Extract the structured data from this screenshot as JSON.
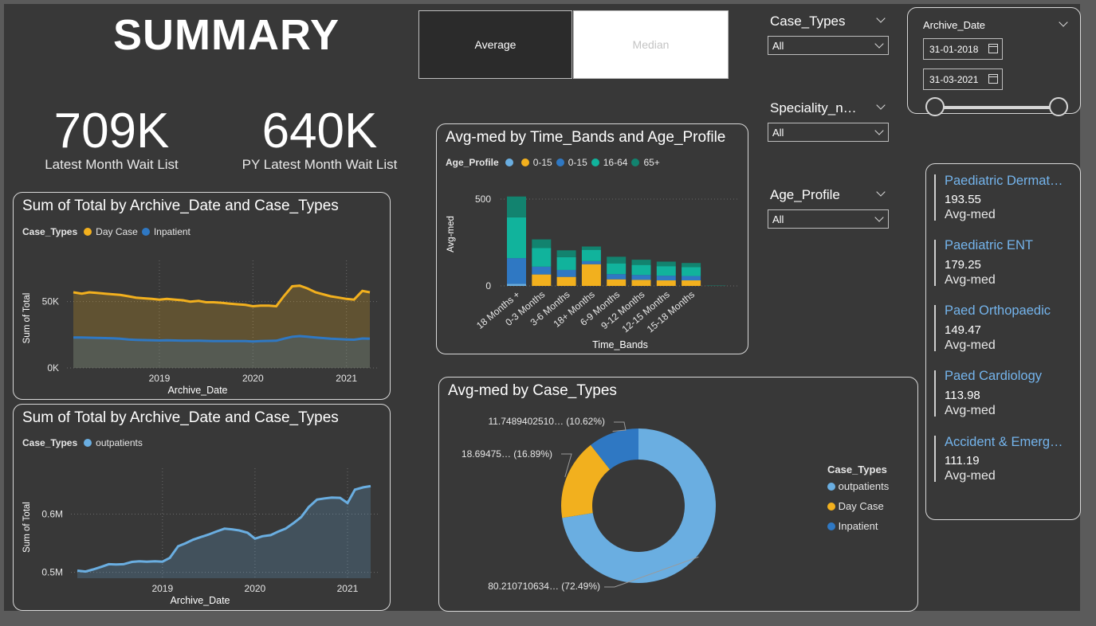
{
  "header": {
    "title": "SUMMARY"
  },
  "toggle": {
    "average": "Average",
    "median": "Median",
    "selected": "Average"
  },
  "kpis": [
    {
      "value": "709K",
      "label": "Latest Month Wait List"
    },
    {
      "value": "640K",
      "label": "PY Latest Month Wait List"
    }
  ],
  "slicers": [
    {
      "title": "Case_Types",
      "value": "All"
    },
    {
      "title": "Speciality_n…",
      "value": "All"
    },
    {
      "title": "Age_Profile",
      "value": "All"
    }
  ],
  "date_slicer": {
    "title": "Archive_Date",
    "start": "31-01-2018",
    "end": "31-03-2021",
    "range_fraction": [
      0,
      1
    ]
  },
  "cards": [
    {
      "name": "Paediatric Dermat…",
      "value": "193.55",
      "label": "Avg-med"
    },
    {
      "name": "Paediatric ENT",
      "value": "179.25",
      "label": "Avg-med"
    },
    {
      "name": "Paed Orthopaedic",
      "value": "149.47",
      "label": "Avg-med"
    },
    {
      "name": "Paed Cardiology",
      "value": "113.98",
      "label": "Avg-med"
    },
    {
      "name": "Accident & Emerg…",
      "value": "111.19",
      "label": "Avg-med"
    }
  ],
  "colors": {
    "day_case": "#f2b01e",
    "inpatient": "#2f78c3",
    "outpatients": "#6aaee1",
    "age_blank": "#6aaee1",
    "age_0_15_a": "#f2b01e",
    "age_0_15_b": "#2f78c3",
    "age_16_64": "#11b39c",
    "age_65_plus": "#12836f"
  },
  "chart_data": [
    {
      "id": "area1",
      "type": "area",
      "title": "Sum of Total by Archive_Date and Case_Types",
      "legend_title": "Case_Types",
      "xlabel": "Archive_Date",
      "ylabel": "Sum of Total",
      "x_ticks": [
        "2019",
        "2020",
        "2021"
      ],
      "y_ticks": [
        "0K",
        "50K"
      ],
      "ylim": [
        0,
        75000
      ],
      "xlim": [
        2018.08,
        2021.25
      ],
      "series": [
        {
          "name": "Day Case",
          "color": "#f2b01e",
          "x": [
            2018.08,
            2018.17,
            2018.25,
            2018.33,
            2018.42,
            2018.5,
            2018.58,
            2018.67,
            2018.75,
            2018.83,
            2018.92,
            2019.0,
            2019.08,
            2019.17,
            2019.25,
            2019.33,
            2019.42,
            2019.5,
            2019.58,
            2019.67,
            2019.75,
            2019.83,
            2019.92,
            2020.0,
            2020.08,
            2020.17,
            2020.25,
            2020.33,
            2020.42,
            2020.5,
            2020.58,
            2020.67,
            2020.75,
            2020.83,
            2020.92,
            2021.0,
            2021.08,
            2021.17,
            2021.25
          ],
          "values": [
            57000,
            56000,
            57000,
            56500,
            56000,
            55500,
            55000,
            54000,
            53000,
            52500,
            52000,
            51500,
            52000,
            51500,
            51000,
            50000,
            50500,
            49500,
            49500,
            49000,
            48500,
            48000,
            47500,
            46500,
            47000,
            47000,
            46500,
            54000,
            61500,
            62000,
            60000,
            57000,
            55500,
            54000,
            53000,
            52000,
            51500,
            58000,
            57000
          ]
        },
        {
          "name": "Inpatient",
          "color": "#2f78c3",
          "x": [
            2018.08,
            2018.17,
            2018.25,
            2018.33,
            2018.42,
            2018.5,
            2018.58,
            2018.67,
            2018.75,
            2018.83,
            2018.92,
            2019.0,
            2019.08,
            2019.17,
            2019.25,
            2019.33,
            2019.42,
            2019.5,
            2019.58,
            2019.67,
            2019.75,
            2019.83,
            2019.92,
            2020.0,
            2020.08,
            2020.17,
            2020.25,
            2020.33,
            2020.42,
            2020.5,
            2020.58,
            2020.67,
            2020.75,
            2020.83,
            2020.92,
            2021.0,
            2021.08,
            2021.17,
            2021.25
          ],
          "values": [
            23000,
            23000,
            22800,
            22600,
            22500,
            22300,
            22000,
            21500,
            21200,
            21000,
            20800,
            20700,
            20800,
            20700,
            20600,
            20500,
            20500,
            20400,
            20300,
            20200,
            20300,
            20300,
            20200,
            20000,
            20200,
            20400,
            20500,
            22000,
            23500,
            24000,
            23500,
            23000,
            22500,
            22000,
            21800,
            21500,
            21300,
            22200,
            22000
          ]
        }
      ]
    },
    {
      "id": "area2",
      "type": "area",
      "title": "Sum of Total by Archive_Date and Case_Types",
      "legend_title": "Case_Types",
      "xlabel": "Archive_Date",
      "ylabel": "Sum of Total",
      "x_ticks": [
        "2019",
        "2020",
        "2021"
      ],
      "y_ticks": [
        "0.5M",
        "0.6M"
      ],
      "ylim": [
        0.49,
        0.665
      ],
      "xlim": [
        2018.08,
        2021.25
      ],
      "series": [
        {
          "name": "outpatients",
          "color": "#6aaee1",
          "x": [
            2018.08,
            2018.17,
            2018.25,
            2018.33,
            2018.42,
            2018.5,
            2018.58,
            2018.67,
            2018.75,
            2018.83,
            2018.92,
            2019.0,
            2019.08,
            2019.17,
            2019.25,
            2019.33,
            2019.42,
            2019.5,
            2019.58,
            2019.67,
            2019.75,
            2019.83,
            2019.92,
            2020.0,
            2020.08,
            2020.17,
            2020.25,
            2020.33,
            2020.42,
            2020.5,
            2020.58,
            2020.67,
            2020.75,
            2020.83,
            2020.92,
            2021.0,
            2021.08,
            2021.17,
            2021.25
          ],
          "values": [
            0.503,
            0.5015,
            0.505,
            0.509,
            0.514,
            0.5135,
            0.514,
            0.518,
            0.519,
            0.5185,
            0.519,
            0.5185,
            0.525,
            0.545,
            0.55,
            0.556,
            0.561,
            0.565,
            0.57,
            0.575,
            0.574,
            0.572,
            0.568,
            0.558,
            0.562,
            0.564,
            0.57,
            0.575,
            0.585,
            0.595,
            0.612,
            0.625,
            0.627,
            0.6285,
            0.628,
            0.619,
            0.642,
            0.646,
            0.648
          ]
        }
      ]
    },
    {
      "id": "stacked",
      "type": "bar",
      "title": "Avg-med by Time_Bands and Age_Profile",
      "legend_title": "Age_Profile",
      "xlabel": "Time_Bands",
      "ylabel": "Avg-med",
      "y_ticks": [
        "0",
        "500"
      ],
      "ylim": [
        0,
        560
      ],
      "categories": [
        "18 Months +",
        "0-3 Months",
        "3-6 Months",
        "18+ Months",
        "6-9 Months",
        "9-12 Months",
        "12-15 Months",
        "15-18 Months",
        ""
      ],
      "series": [
        {
          "name": "",
          "color": "#6aaee1",
          "values": [
            12,
            0,
            0,
            0,
            0,
            0,
            0,
            0,
            0
          ]
        },
        {
          "name": "0-15",
          "color": "#f2b01e",
          "values": [
            0,
            66,
            52,
            125,
            38,
            35,
            32,
            32,
            0
          ]
        },
        {
          "name": "0-15",
          "color": "#2f78c3",
          "values": [
            148,
            45,
            40,
            18,
            30,
            28,
            27,
            25,
            0
          ]
        },
        {
          "name": "16-64",
          "color": "#11b39c",
          "values": [
            235,
            107,
            74,
            65,
            62,
            58,
            55,
            52,
            0
          ]
        },
        {
          "name": "65+",
          "color": "#12836f",
          "values": [
            120,
            50,
            39,
            19,
            38,
            30,
            26,
            23,
            2
          ]
        }
      ]
    },
    {
      "id": "donut",
      "type": "pie",
      "title": "Avg-med by Case_Types",
      "legend_title": "Case_Types",
      "categories": [
        "outpatients",
        "Day Case",
        "Inpatient"
      ],
      "values": [
        80.21,
        18.69,
        11.75
      ],
      "percents": [
        72.49,
        16.89,
        10.62
      ],
      "colors": [
        "#6aaee1",
        "#f2b01e",
        "#2f78c3"
      ],
      "data_labels": [
        "80.210710634… (72.49%)",
        "18.69475… (16.89%)",
        "11.7489402510… (10.62%)"
      ]
    }
  ]
}
